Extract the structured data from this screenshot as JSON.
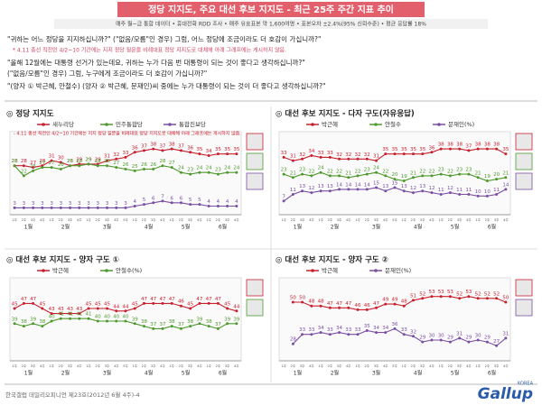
{
  "header": {
    "title": "정당 지지도, 주요 대선 후보 지지도 - 최근 25주 주간 지표 추이",
    "subtitle": "매주 월~금 통합 데이터 • 휴대전화 RDD 조사 • 매주 유효표본 약 1,600여명 • 표본오차 ±2.4%(95% 신뢰수준) • 평균 응답률 18%",
    "questions": [
      "\"귀하는 어느 정당을 지지하십니까?\" (\"없음/모름\"인 경우) 그럼, 어느 정당에 조금이라도 더 호감이 가십니까?\"",
      "\"올해 12월에는 대통령 선거가 있는데요, 귀하는 누가 다음 번 대통령이 되는 것이 좋다고 생각하십니까?\"",
      "(\"없음/모름\"인 경우) 그럼, 누구에게 조금이라도 더 호감이 가십니까?\"",
      "\"(양자 ① 박근혜, 안철수) (양자 ② 박근혜, 문재인)씨 중에는 누가 대통령이 되는 것이 더 좋다고 생각하십니까?\""
    ],
    "note": "* 4.11 총선 직전인 4/2~10 기간에는 지지 정당 질문을 비례대표 정당 지지도로 대체해 아래 그래프에는 게시하지 않음."
  },
  "x_axis": {
    "months": [
      {
        "label": "1월",
        "weeks": [
          "1주",
          "2주",
          "3주",
          "4주"
        ]
      },
      {
        "label": "2월",
        "weeks": [
          "1주",
          "2주",
          "3주",
          "4주"
        ]
      },
      {
        "label": "3월",
        "weeks": [
          "1주",
          "2주",
          "3주",
          "4주",
          "5주"
        ]
      },
      {
        "label": "4월",
        "weeks": [
          "1주",
          "2주",
          "3주",
          "4주"
        ]
      },
      {
        "label": "5월",
        "weeks": [
          "1주",
          "2주",
          "3주",
          "4주"
        ]
      },
      {
        "label": "6월",
        "weeks": [
          "1주",
          "2주",
          "3주",
          "4주"
        ]
      }
    ]
  },
  "chart_data": [
    {
      "type": "line",
      "title": "◎ 정당 지지도",
      "ylim": [
        0,
        45
      ],
      "annotation": "- 4.11 총선 직전인 4/2~10 기간에는 지지 정당 질문을 비례대표 정당 지지도로 대체해 아래 그래프에는 게시하지 않음.",
      "series": [
        {
          "name": "새누리당",
          "color": "#c8202f",
          "values": [
            28,
            28,
            27,
            28,
            31,
            30,
            28,
            29,
            29,
            29,
            31,
            32,
            33,
            36,
            37,
            38,
            37,
            38,
            37,
            36,
            35,
            34,
            35,
            35,
            35
          ]
        },
        {
          "name": "민주통합당",
          "color": "#4e9a2e",
          "values": [
            28,
            22,
            25,
            27,
            27,
            26,
            28,
            28,
            29,
            28,
            28,
            27,
            26,
            25,
            26,
            26,
            28,
            27,
            24,
            23,
            24,
            24,
            23,
            24,
            24
          ]
        },
        {
          "name": "통합진보당",
          "color": "#7a4fa3",
          "values": [
            3,
            3,
            3,
            3,
            3,
            3,
            3,
            3,
            3,
            3,
            3,
            3,
            3,
            4,
            5,
            6,
            7,
            6,
            6,
            5,
            5,
            4,
            4,
            4,
            4
          ]
        }
      ]
    },
    {
      "type": "line",
      "title": "◎ 대선 후보 지지도 - 다자 구도(자유응답)",
      "ylim": [
        0,
        45
      ],
      "series": [
        {
          "name": "박근혜",
          "color": "#c8202f",
          "values": [
            33,
            31,
            32,
            34,
            33,
            33,
            32,
            32,
            32,
            32,
            31,
            35,
            35,
            35,
            35,
            35,
            36,
            38,
            38,
            38,
            37,
            38,
            38,
            38,
            35
          ]
        },
        {
          "name": "안철수",
          "color": "#4e9a2e",
          "values": [
            23,
            21,
            23,
            22,
            24,
            22,
            22,
            21,
            22,
            23,
            24,
            22,
            20,
            19,
            21,
            22,
            22,
            23,
            22,
            23,
            23,
            21,
            19,
            20,
            21
          ]
        },
        {
          "name": "문재인(%)",
          "color": "#7a4fa3",
          "values": [
            7,
            11,
            13,
            12,
            13,
            13,
            14,
            14,
            14,
            14,
            15,
            13,
            15,
            13,
            12,
            13,
            12,
            11,
            12,
            11,
            11,
            10,
            10,
            11,
            14
          ]
        }
      ]
    },
    {
      "type": "line",
      "title": "◎ 대선 후보 지지도 - 양자 구도 ①",
      "ylim": [
        25,
        55
      ],
      "series": [
        {
          "name": "박근혜",
          "color": "#c8202f",
          "values": [
            45,
            47,
            47,
            45,
            43,
            43,
            43,
            43,
            45,
            45,
            45,
            44,
            44,
            45,
            47,
            47,
            47,
            47,
            46,
            45,
            47,
            47,
            47,
            45,
            44
          ]
        },
        {
          "name": "안철수(%)",
          "color": "#4e9a2e",
          "values": [
            39,
            38,
            39,
            38,
            40,
            41,
            41,
            41,
            41,
            40,
            40,
            40,
            40,
            39,
            38,
            37,
            37,
            38,
            37,
            38,
            39,
            38,
            37,
            39,
            39
          ]
        }
      ]
    },
    {
      "type": "line",
      "title": "◎ 대선 후보 지지도 - 양자 구도 ②",
      "ylim": [
        20,
        60
      ],
      "series": [
        {
          "name": "박근혜",
          "color": "#c8202f",
          "values": [
            null,
            50,
            50,
            48,
            48,
            47,
            47,
            47,
            46,
            46,
            47,
            49,
            49,
            48,
            51,
            52,
            53,
            53,
            53,
            52,
            53,
            52,
            52,
            52,
            50
          ]
        },
        {
          "name": "문재인(%)",
          "color": "#7a4fa3",
          "values": [
            null,
            28,
            33,
            33,
            34,
            33,
            34,
            33,
            33,
            35,
            34,
            34,
            36,
            33,
            32,
            29,
            30,
            30,
            29,
            31,
            29,
            30,
            29,
            27,
            31
          ]
        }
      ]
    }
  ],
  "footer": {
    "source": "한국갤럽 데일리오피니언 제23호(2012년 6월 4주)-4",
    "logo": "Gallup",
    "logo_sub": "KOREA"
  }
}
